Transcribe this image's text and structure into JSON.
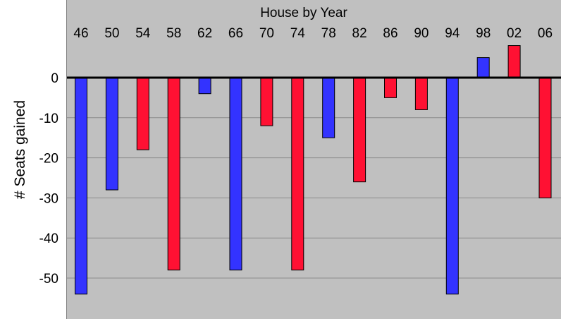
{
  "chart_data": {
    "type": "bar",
    "title": "House by Year",
    "ylabel": "# Seats gained",
    "xlabel": "",
    "categories": [
      "46",
      "50",
      "54",
      "58",
      "62",
      "66",
      "70",
      "74",
      "78",
      "82",
      "86",
      "90",
      "94",
      "98",
      "02",
      "06"
    ],
    "values": [
      -54,
      -28,
      -18,
      -48,
      -4,
      -48,
      -12,
      -48,
      -15,
      -26,
      -5,
      -8,
      -54,
      5,
      8,
      -30
    ],
    "bar_party": [
      "blue",
      "blue",
      "red",
      "red",
      "blue",
      "blue",
      "red",
      "red",
      "blue",
      "red",
      "red",
      "red",
      "blue",
      "blue",
      "red",
      "red"
    ],
    "ylim": [
      -59,
      10
    ],
    "yticks": [
      0,
      -10,
      -20,
      -30,
      -40,
      -50
    ],
    "ytick_labels": [
      "0",
      "-10",
      "-20",
      "-30",
      "-40",
      "-50"
    ],
    "grid": true,
    "legend": "none",
    "colors": {
      "blue": "#3333ff",
      "red": "#ff1133",
      "plot_background": "#c0c0c0",
      "gridline": "#8c8c8c",
      "zero_line": "#000000"
    }
  }
}
